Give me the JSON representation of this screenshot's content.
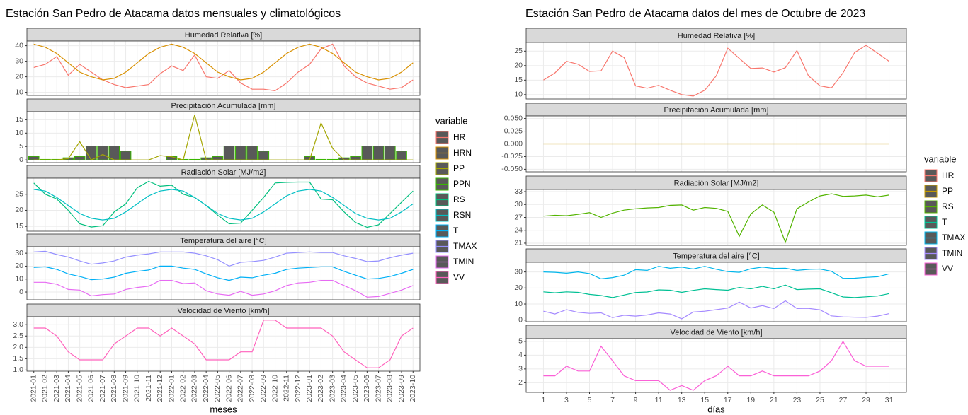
{
  "chart_data": [
    {
      "type": "line",
      "title": "Estación San Pedro de Atacama datos mensuales y climatológicos",
      "x_label": "meses",
      "legend_title": "variable",
      "categories": [
        "2021-01",
        "2021-02",
        "2021-03",
        "2021-04",
        "2021-05",
        "2021-06",
        "2021-07",
        "2021-08",
        "2021-09",
        "2021-10",
        "2021-11",
        "2021-12",
        "2022-01",
        "2022-02",
        "2022-03",
        "2022-04",
        "2022-05",
        "2022-06",
        "2022-07",
        "2022-08",
        "2022-09",
        "2022-10",
        "2022-11",
        "2022-12",
        "2023-01",
        "2023-02",
        "2023-03",
        "2023-04",
        "2023-05",
        "2023-06",
        "2023-07",
        "2023-08",
        "2023-09",
        "2023-10"
      ],
      "grid": true,
      "panels": [
        {
          "title": "Humedad Relativa [%]",
          "ylim": [
            8,
            43
          ],
          "yticks": [
            10,
            20,
            30,
            40
          ],
          "series": [
            {
              "name": "HR",
              "color": "#F8766D",
              "type": "line",
              "values": [
                26,
                28,
                33,
                21,
                28,
                23,
                18,
                15,
                13,
                14,
                15,
                22,
                27,
                24,
                34,
                20,
                19,
                24,
                16,
                12,
                12,
                11,
                16,
                23,
                28,
                38,
                41,
                27,
                20,
                16,
                14,
                12,
                13,
                18
              ]
            },
            {
              "name": "HRN",
              "color": "#D89000",
              "type": "line",
              "values": [
                41,
                39,
                35,
                29,
                23,
                20,
                18,
                19,
                23,
                29,
                35,
                39,
                41,
                39,
                35,
                29,
                23,
                20,
                18,
                19,
                23,
                29,
                35,
                39,
                41,
                39,
                35,
                29,
                23,
                20,
                18,
                19,
                23,
                29
              ]
            }
          ]
        },
        {
          "title": "Precipitación Acumulada [mm]",
          "ylim": [
            -1,
            18
          ],
          "yticks": [
            0,
            5,
            10,
            15
          ],
          "series": [
            {
              "name": "PP",
              "color": "#A3A500",
              "type": "line",
              "values": [
                0,
                0,
                0,
                0.5,
                6.8,
                0,
                2,
                0,
                0,
                0,
                0,
                1.6,
                1.2,
                0,
                16.8,
                0,
                0,
                0,
                0,
                0,
                0,
                0,
                0,
                0,
                0,
                13.8,
                4.3,
                0,
                0,
                0,
                0,
                0,
                0,
                0
              ]
            },
            {
              "name": "PPN",
              "color": "#39B600",
              "type": "bar",
              "values": [
                1.3,
                0.2,
                0.2,
                0.8,
                1.3,
                5.2,
                5.2,
                5.2,
                3.3,
                0,
                0,
                0,
                1.3,
                0.2,
                0.2,
                0.8,
                1.3,
                5.2,
                5.2,
                5.2,
                3.3,
                0,
                0,
                0,
                1.3,
                0.2,
                0.2,
                0.8,
                1.3,
                5.2,
                5.2,
                5.2,
                3.3,
                0
              ]
            }
          ]
        },
        {
          "title": "Radiación Solar [MJ/m2]",
          "ylim": [
            13.5,
            30
          ],
          "yticks": [
            15,
            20,
            25
          ],
          "series": [
            {
              "name": "RS",
              "color": "#00BF7D",
              "type": "line",
              "values": [
                28.5,
                25,
                23.5,
                20,
                15.8,
                14.8,
                15.2,
                19.5,
                22,
                27,
                29,
                27.5,
                27.8,
                25,
                24,
                21.5,
                18.5,
                15.8,
                16,
                20,
                24,
                28.5,
                28.7,
                28.8,
                28.8,
                23.5,
                23.3,
                19.5,
                16.2,
                14.7,
                15.5,
                19,
                22.5,
                26
              ]
            },
            {
              "name": "RSN",
              "color": "#00BFC4",
              "type": "line",
              "values": [
                26.5,
                26,
                24,
                21.5,
                19,
                17.5,
                17,
                17.5,
                19.5,
                22,
                24.5,
                26,
                26.5,
                26,
                24,
                21.5,
                19,
                17.5,
                17,
                17.5,
                19.5,
                22,
                24.5,
                26,
                26.5,
                26,
                24,
                21.5,
                19,
                17.5,
                17,
                17.5,
                19.5,
                22
              ]
            }
          ]
        },
        {
          "title": "Temperatura del aire [°C]",
          "ylim": [
            -6,
            35
          ],
          "yticks": [
            0,
            10,
            20,
            30
          ],
          "series": [
            {
              "name": "T",
              "color": "#00B0F6",
              "type": "line",
              "values": [
                19,
                19.5,
                17.5,
                14,
                12,
                9.5,
                10,
                11.5,
                14.5,
                16,
                17,
                20,
                20,
                18.5,
                17.5,
                14,
                11,
                9,
                11.5,
                11,
                13,
                14.5,
                17.5,
                18.5,
                19,
                19.5,
                19.5,
                16,
                13,
                10,
                10.5,
                12,
                14.5,
                17.5
              ]
            },
            {
              "name": "TMAX",
              "color": "#9590FF",
              "type": "line",
              "values": [
                31,
                31.5,
                29,
                27,
                24,
                21.5,
                22.5,
                24,
                27,
                28.5,
                29.5,
                31,
                31,
                31,
                30,
                28,
                25,
                20,
                23,
                23.5,
                24.5,
                27,
                30,
                30.5,
                31,
                30.5,
                30.5,
                28,
                26,
                23.5,
                24,
                26.5,
                28.5,
                30
              ]
            },
            {
              "name": "TMIN",
              "color": "#E76BF3",
              "type": "line",
              "values": [
                7.5,
                7.5,
                6,
                2,
                1.5,
                -3,
                -2,
                -1.5,
                2,
                3.5,
                4.5,
                9,
                9,
                6.5,
                7,
                1,
                -1.5,
                -2.5,
                0.5,
                -2.5,
                -1.5,
                1,
                5,
                7,
                7.5,
                9,
                9,
                5,
                1,
                -4,
                -3.5,
                -1,
                1.5,
                5
              ]
            }
          ]
        },
        {
          "title": "Velocidad de Viento [km/h]",
          "ylim": [
            0.95,
            3.35
          ],
          "yticks": [
            {
              "value": 1,
              "label": "1.0"
            },
            1.5,
            {
              "value": 2,
              "label": "2.0"
            },
            2.5,
            {
              "value": 3,
              "label": "3.0"
            }
          ],
          "series": [
            {
              "name": "VV",
              "color": "#FF62BC",
              "type": "line",
              "values": [
                2.85,
                2.85,
                2.5,
                1.8,
                1.45,
                1.45,
                1.45,
                2.15,
                2.5,
                2.85,
                2.85,
                2.5,
                2.85,
                2.5,
                2.15,
                1.45,
                1.45,
                1.45,
                1.8,
                1.8,
                3.2,
                3.2,
                2.85,
                2.85,
                2.85,
                2.85,
                2.5,
                1.8,
                1.45,
                1.1,
                1.1,
                1.45,
                2.5,
                2.85
              ]
            }
          ]
        }
      ]
    },
    {
      "type": "line",
      "title": "Estación San Pedro de Atacama datos del mes de Octubre de 2023",
      "x_label": "días",
      "legend_title": "variable",
      "x": [
        1,
        2,
        3,
        4,
        5,
        6,
        7,
        8,
        9,
        10,
        11,
        12,
        13,
        14,
        15,
        16,
        17,
        18,
        19,
        20,
        21,
        22,
        23,
        24,
        25,
        26,
        27,
        28,
        29,
        30,
        31
      ],
      "xlim": [
        -0.5,
        32.5
      ],
      "xticks": [
        1,
        3,
        5,
        7,
        9,
        11,
        13,
        15,
        17,
        19,
        21,
        23,
        25,
        27,
        29,
        31
      ],
      "grid": true,
      "panels": [
        {
          "title": "Humedad Relativa [%]",
          "ylim": [
            8.5,
            28
          ],
          "yticks": [
            10,
            15,
            20,
            25
          ],
          "series": [
            {
              "name": "HR",
              "color": "#F8766D",
              "type": "line",
              "values": [
                15,
                17.5,
                21.5,
                20.5,
                18,
                18.2,
                25,
                22.8,
                13,
                12.2,
                13.2,
                11.5,
                10,
                9.5,
                11.5,
                16.5,
                26,
                22.5,
                19,
                19.2,
                17.8,
                19.3,
                25.2,
                16.5,
                13,
                12.3,
                17.5,
                24.5,
                27,
                24.3,
                21.5
              ]
            }
          ]
        },
        {
          "title": "Precipitación Acumulada [mm]",
          "ylim": [
            -0.055,
            0.055
          ],
          "yticks": [
            {
              "value": 0.05,
              "label": "0.050"
            },
            {
              "value": 0.025,
              "label": "0.025"
            },
            {
              "value": 0,
              "label": "0.000"
            },
            {
              "value": -0.025,
              "label": "-0.025"
            },
            {
              "value": -0.05,
              "label": "-0.050"
            }
          ],
          "series": [
            {
              "name": "PP",
              "color": "#C49A00",
              "type": "line",
              "values": [
                0,
                0,
                0,
                0,
                0,
                0,
                0,
                0,
                0,
                0,
                0,
                0,
                0,
                0,
                0,
                0,
                0,
                0,
                0,
                0,
                0,
                0,
                0,
                0,
                0,
                0,
                0,
                0,
                0,
                0,
                0
              ]
            }
          ]
        },
        {
          "title": "Radiación Solar [MJ/m2]",
          "ylim": [
            20.5,
            33.5
          ],
          "yticks": [
            21,
            24,
            27,
            30,
            33
          ],
          "series": [
            {
              "name": "RS",
              "color": "#53B400",
              "type": "line",
              "values": [
                27.3,
                27.5,
                27.4,
                27.7,
                28.1,
                27,
                28,
                28.7,
                29,
                29.2,
                29.3,
                29.8,
                29.9,
                28.7,
                29.3,
                29.1,
                28.4,
                22.6,
                27.8,
                29.9,
                28.2,
                21.2,
                29,
                30.6,
                32,
                32.5,
                31.9,
                32,
                32.2,
                31.8,
                32.2
              ]
            }
          ]
        },
        {
          "title": "Temperatura del aire [°C]",
          "ylim": [
            -1,
            36
          ],
          "yticks": [
            0,
            10,
            20,
            30
          ],
          "series": [
            {
              "name": "T",
              "color": "#00C094",
              "type": "line",
              "values": [
                17.6,
                17,
                17.6,
                17.3,
                16,
                15.3,
                14,
                15.6,
                17.2,
                17.5,
                18.8,
                18.6,
                17.3,
                18.5,
                19.5,
                19,
                18.6,
                20.3,
                19.5,
                21,
                19.5,
                21.8,
                19,
                19.3,
                19.5,
                17,
                14.4,
                14,
                14.5,
                15,
                16.5
              ]
            },
            {
              "name": "TMAX",
              "color": "#00B6EB",
              "type": "line",
              "values": [
                30,
                29.8,
                29.2,
                30,
                29,
                25.7,
                26.5,
                28,
                31.4,
                31,
                33.5,
                32.3,
                33,
                31.8,
                33.5,
                31.7,
                30.2,
                29.8,
                32,
                33,
                32.2,
                32.3,
                31,
                31.6,
                31.8,
                30.4,
                26,
                26.1,
                26.6,
                27,
                28.8
              ]
            },
            {
              "name": "TMIN",
              "color": "#A58AFF",
              "type": "line",
              "values": [
                5.5,
                3.8,
                6.5,
                4.8,
                4.2,
                4.5,
                1.5,
                3,
                2.5,
                3.2,
                4.5,
                3.8,
                0.8,
                5,
                5.5,
                6.5,
                7.5,
                11.2,
                7.5,
                9,
                7.2,
                12,
                7.2,
                7.3,
                6.4,
                2.6,
                2,
                1.8,
                1.7,
                2.5,
                4
              ]
            }
          ]
        },
        {
          "title": "Velocidad de Viento [km/h]",
          "ylim": [
            1.3,
            5.2
          ],
          "yticks": [
            2,
            3,
            4,
            5
          ],
          "series": [
            {
              "name": "VV",
              "color": "#FB61D7",
              "type": "line",
              "values": [
                2.5,
                2.5,
                3.2,
                2.85,
                2.85,
                4.65,
                3.6,
                2.5,
                2.15,
                2.15,
                2.15,
                1.45,
                1.8,
                1.45,
                2.15,
                2.5,
                3.2,
                2.5,
                2.5,
                2.85,
                2.5,
                2.5,
                2.5,
                2.5,
                2.85,
                3.6,
                5.0,
                3.6,
                3.2,
                3.2,
                3.2
              ]
            }
          ]
        }
      ]
    }
  ]
}
